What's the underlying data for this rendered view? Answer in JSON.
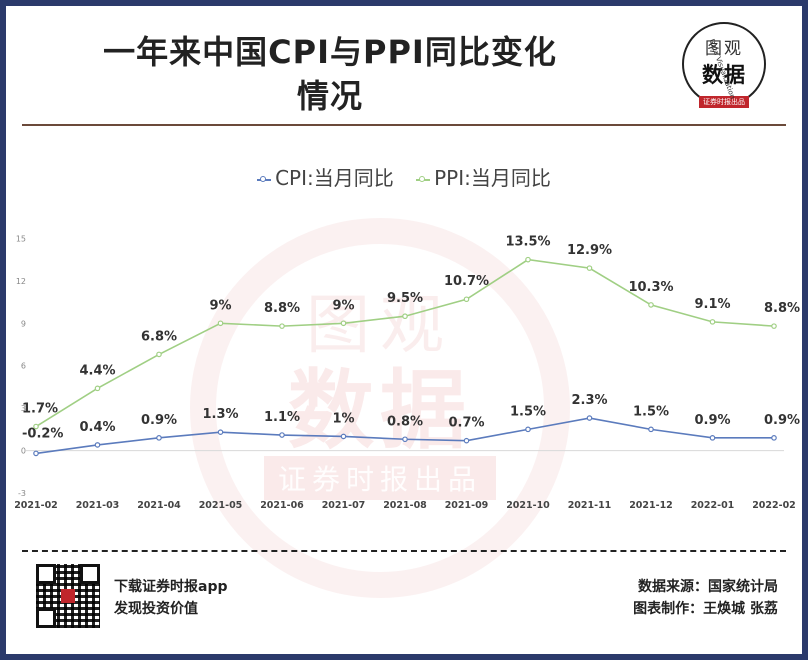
{
  "header": {
    "title_line1": "一年来中国CPI与PPI同比变化",
    "title_line2": "情况"
  },
  "logo": {
    "line1": "图观",
    "line2": "数据",
    "line3": "证券时报出品",
    "arc_text": "Data Visualization"
  },
  "watermark": {
    "line1": "图观",
    "line2": "数据",
    "line3": "证券时报出品"
  },
  "colors": {
    "cpi": "#5b7bbd",
    "ppi": "#a0cf84",
    "frame": "#2b3a6b",
    "brand_red": "#c0262c"
  },
  "chart_data": {
    "type": "line",
    "title": "",
    "xlabel": "",
    "ylabel": "",
    "categories": [
      "2021-02",
      "2021-03",
      "2021-04",
      "2021-05",
      "2021-06",
      "2021-07",
      "2021-08",
      "2021-09",
      "2021-10",
      "2021-11",
      "2021-12",
      "2022-01",
      "2022-02"
    ],
    "y_ticks": [
      -3,
      0,
      3,
      6,
      9,
      12,
      15
    ],
    "ylim": [
      -3,
      18
    ],
    "grid": false,
    "legend_position": "top",
    "series": [
      {
        "name": "CPI:当月同比",
        "color_key": "cpi",
        "values": [
          -0.2,
          0.4,
          0.9,
          1.3,
          1.1,
          1.0,
          0.8,
          0.7,
          1.5,
          2.3,
          1.5,
          0.9,
          0.9
        ],
        "labels": [
          "-0.2%",
          "0.4%",
          "0.9%",
          "1.3%",
          "1.1%",
          "1%",
          "0.8%",
          "0.7%",
          "1.5%",
          "2.3%",
          "1.5%",
          "0.9%",
          "0.9%"
        ]
      },
      {
        "name": "PPI:当月同比",
        "color_key": "ppi",
        "values": [
          1.7,
          4.4,
          6.8,
          9.0,
          8.8,
          9.0,
          9.5,
          10.7,
          13.5,
          12.9,
          10.3,
          9.1,
          8.8
        ],
        "labels": [
          "1.7%",
          "4.4%",
          "6.8%",
          "9%",
          "8.8%",
          "9%",
          "9.5%",
          "10.7%",
          "13.5%",
          "12.9%",
          "10.3%",
          "9.1%",
          "8.8%"
        ]
      }
    ]
  },
  "footer": {
    "left_line1": "下载证券时报app",
    "left_line2": "发现投资价值",
    "right_line1": "数据来源：国家统计局",
    "right_line2": "图表制作：王焕城 张荔"
  }
}
